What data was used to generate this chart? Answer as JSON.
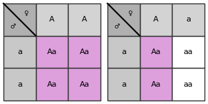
{
  "left_square": {
    "female_headers": [
      "A",
      "A"
    ],
    "male_headers": [
      "a",
      "a"
    ],
    "cells": [
      [
        "Aa",
        "Aa"
      ],
      [
        "Aa",
        "Aa"
      ]
    ],
    "cell_colors": [
      [
        "#dda0dd",
        "#dda0dd"
      ],
      [
        "#dda0dd",
        "#dda0dd"
      ]
    ]
  },
  "right_square": {
    "female_headers": [
      "A",
      "a"
    ],
    "male_headers": [
      "a",
      "a"
    ],
    "cells": [
      [
        "Aa",
        "aa"
      ],
      [
        "Aa",
        "aa"
      ]
    ],
    "cell_colors": [
      [
        "#dda0dd",
        "#ffffff"
      ],
      [
        "#dda0dd",
        "#ffffff"
      ]
    ]
  },
  "header_bg": "#d3d3d3",
  "corner_bg": "#b0b0b0",
  "inner_header_bg": "#c8c8c8",
  "grid_color": "#333333",
  "bg_color": "#ffffff",
  "female_symbol": "♀",
  "male_symbol": "♂",
  "cell_fontsize": 8,
  "header_fontsize": 8,
  "symbol_fontsize": 6.5,
  "lw": 1.0
}
